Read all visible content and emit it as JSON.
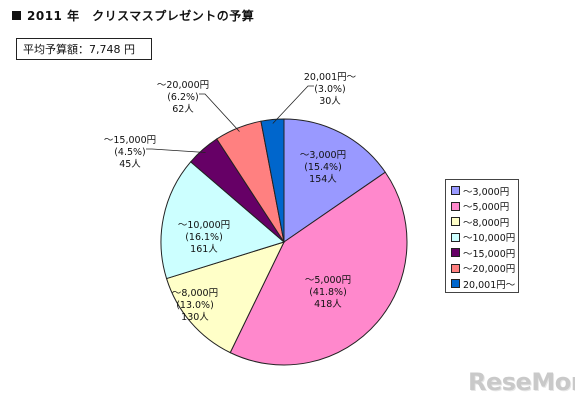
{
  "header": {
    "title": "2011 年　クリスマスプレゼントの予算",
    "budget": "平均予算額：7,748 円"
  },
  "chart_data": {
    "type": "pie",
    "title": "2011 年　クリスマスプレゼントの予算",
    "categories": [
      "～3,000円",
      "～5,000円",
      "～8,000円",
      "～10,000円",
      "～15,000円",
      "～20,000円",
      "20,001円～"
    ],
    "values": [
      154,
      418,
      130,
      161,
      45,
      62,
      30
    ],
    "percent_labels": [
      "(15.4%)",
      "(41.8%)",
      "(13.0%)",
      "(16.1%)",
      "(4.5%)",
      "(6.2%)",
      "(3.0%)"
    ],
    "count_labels": [
      "154人",
      "418人",
      "130人",
      "161人",
      "45人",
      "62人",
      "30人"
    ],
    "colors": [
      "#9999ff",
      "#ff88cc",
      "#ffffc8",
      "#ccffff",
      "#660066",
      "#ff8080",
      "#0066cc"
    ],
    "legend": {
      "position": "right",
      "entries": [
        "～3,000円",
        "～5,000円",
        "～8,000円",
        "～10,000円",
        "～15,000円",
        "～20,000円",
        "20,001円～"
      ]
    }
  },
  "watermark": {
    "text": "ReseMom"
  }
}
